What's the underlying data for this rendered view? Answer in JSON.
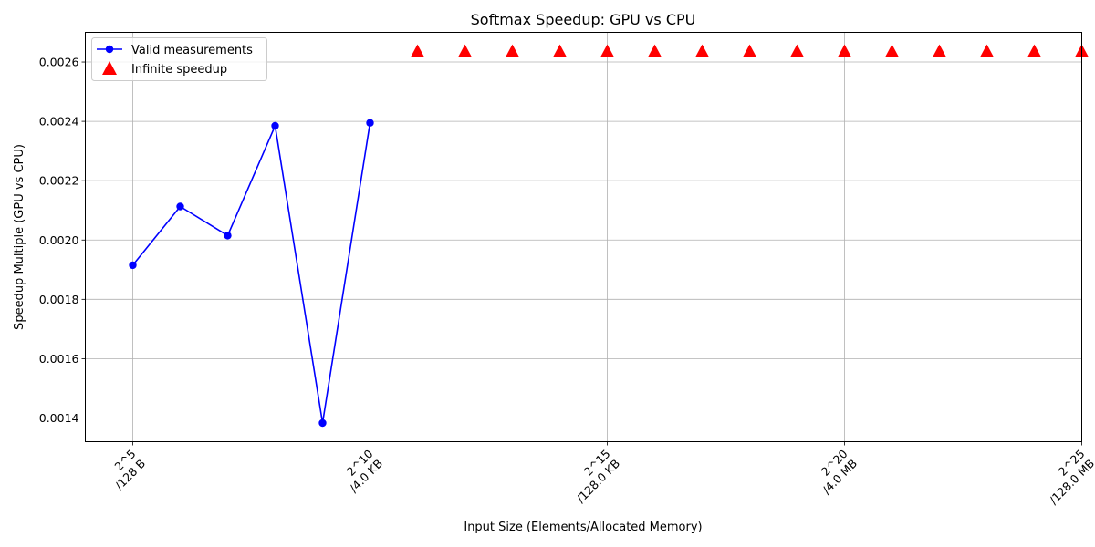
{
  "chart_data": {
    "type": "line",
    "title": "Softmax Speedup: GPU vs CPU",
    "xlabel": "Input Size (Elements/Allocated Memory)",
    "ylabel": "Speedup Multiple (GPU vs CPU)",
    "xlim": [
      4.0,
      25.0
    ],
    "ylim": [
      0.00132,
      0.0027
    ],
    "y_ticks": [
      0.0014,
      0.0016,
      0.0018,
      0.002,
      0.0022,
      0.0024,
      0.0026
    ],
    "y_tick_labels": [
      "0.0014",
      "0.0016",
      "0.0018",
      "0.0020",
      "0.0022",
      "0.0024",
      "0.0026"
    ],
    "x_ticks": [
      {
        "x": 5,
        "line1": "2^5",
        "line2": "/128 B"
      },
      {
        "x": 10,
        "line1": "2^10",
        "line2": "/4.0 KB"
      },
      {
        "x": 15,
        "line1": "2^15",
        "line2": "/128.0 KB"
      },
      {
        "x": 20,
        "line1": "2^20",
        "line2": "/4.0 MB"
      },
      {
        "x": 25,
        "line1": "2^25",
        "line2": "/128.0 MB"
      }
    ],
    "grid": true,
    "legend_position": "top-left",
    "series": [
      {
        "name": "Valid measurements",
        "color": "#0000ff",
        "marker": "circle",
        "style": "line",
        "x": [
          5,
          6,
          7,
          8,
          9,
          10
        ],
        "y": [
          0.001915,
          0.002113,
          0.002015,
          0.002385,
          0.001383,
          0.002395
        ]
      },
      {
        "name": "Infinite speedup",
        "color": "#ff0000",
        "marker": "triangle",
        "style": "scatter",
        "x": [
          11,
          12,
          13,
          14,
          15,
          16,
          17,
          18,
          19,
          20,
          21,
          22,
          23,
          24,
          25
        ],
        "y": [
          0.002635,
          0.002635,
          0.002635,
          0.002635,
          0.002635,
          0.002635,
          0.002635,
          0.002635,
          0.002635,
          0.002635,
          0.002635,
          0.002635,
          0.002635,
          0.002635,
          0.002635
        ]
      }
    ]
  }
}
